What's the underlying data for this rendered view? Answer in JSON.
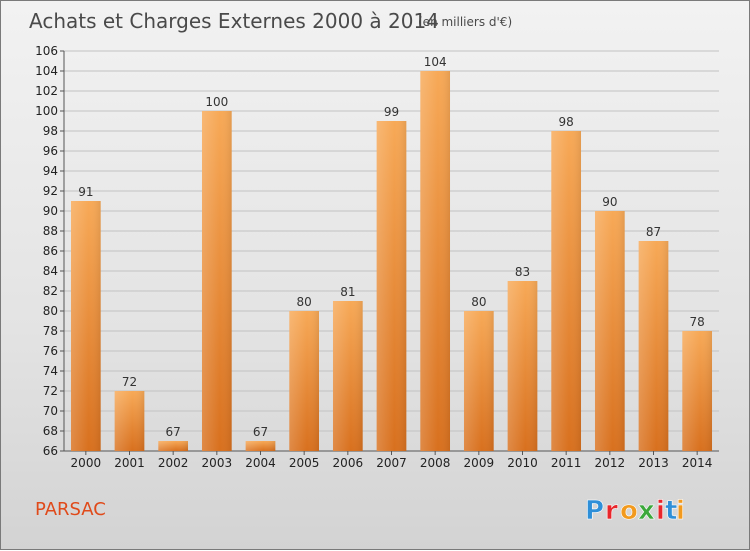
{
  "chart_data": {
    "type": "bar",
    "title": "Achats et Charges Externes 2000 à 2014",
    "subtitle": "(en milliers d'€)",
    "categories": [
      "2000",
      "2001",
      "2002",
      "2003",
      "2004",
      "2005",
      "2006",
      "2007",
      "2008",
      "2009",
      "2010",
      "2011",
      "2012",
      "2013",
      "2014"
    ],
    "values": [
      91,
      72,
      67,
      100,
      67,
      80,
      81,
      99,
      104,
      80,
      83,
      98,
      90,
      87,
      78
    ],
    "xlabel": "",
    "ylabel": "",
    "ylim": [
      66,
      106
    ],
    "ytick_step": 2,
    "grid": "horizontal",
    "legend": "none"
  },
  "footer": {
    "place_name": "PARSAC",
    "logo_text": "Proxiti"
  },
  "colors": {
    "bar_light": "#f7a957",
    "bar_dark": "#d8701e",
    "place_name": "#e04a1a",
    "logo_letters": [
      "#2e8fd8",
      "#e8262b",
      "#f29a1e",
      "#3ba83b",
      "#e8262b",
      "#2e8fd8",
      "#f29a1e"
    ]
  }
}
